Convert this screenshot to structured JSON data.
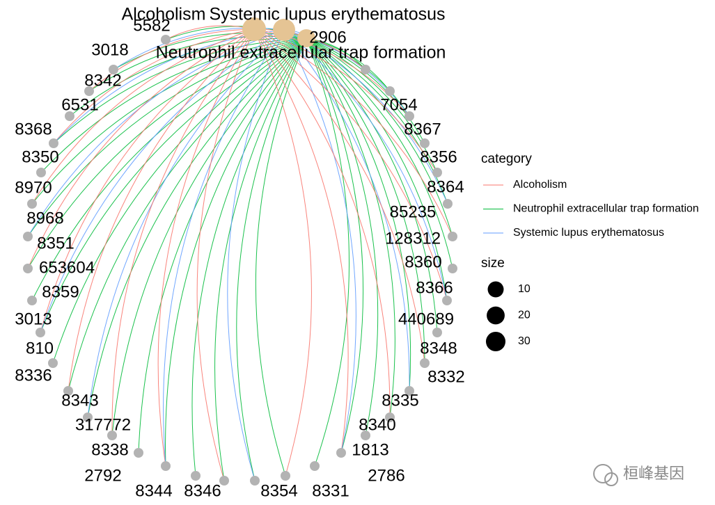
{
  "category_nodes": [
    {
      "label": "Alcoholism"
    },
    {
      "label": "Systemic lupus erythematosus"
    },
    {
      "label": "Neutrophil extracellular trap formation"
    }
  ],
  "gene_nodes": [
    {
      "label": "5582"
    },
    {
      "label": "3018"
    },
    {
      "label": "8342"
    },
    {
      "label": "6531"
    },
    {
      "label": "8368"
    },
    {
      "label": "8350"
    },
    {
      "label": "8970"
    },
    {
      "label": "8968"
    },
    {
      "label": "8351"
    },
    {
      "label": "653604"
    },
    {
      "label": "8359"
    },
    {
      "label": "3013"
    },
    {
      "label": "810"
    },
    {
      "label": "8336"
    },
    {
      "label": "8343"
    },
    {
      "label": "317772"
    },
    {
      "label": "8338"
    },
    {
      "label": "2792"
    },
    {
      "label": "8344"
    },
    {
      "label": "8346"
    },
    {
      "label": "8354"
    },
    {
      "label": "8331"
    },
    {
      "label": "2786"
    },
    {
      "label": "1813"
    },
    {
      "label": "8340"
    },
    {
      "label": "8335"
    },
    {
      "label": "8332"
    },
    {
      "label": "8348"
    },
    {
      "label": "440689"
    },
    {
      "label": "8366"
    },
    {
      "label": "8360"
    },
    {
      "label": "128312"
    },
    {
      "label": "85235"
    },
    {
      "label": "8364"
    },
    {
      "label": "8356"
    },
    {
      "label": "8367"
    },
    {
      "label": "7054"
    },
    {
      "label": "2906"
    }
  ],
  "legend": {
    "category_title": "category",
    "entries": [
      {
        "label": "Alcoholism",
        "color": "#F8766D"
      },
      {
        "label": "Neutrophil extracellular trap formation",
        "color": "#00BA38"
      },
      {
        "label": "Systemic lupus erythematosus",
        "color": "#619CFF"
      }
    ],
    "size_title": "size",
    "size_entries": [
      10,
      20,
      30
    ]
  },
  "watermark": "桓峰基因"
}
